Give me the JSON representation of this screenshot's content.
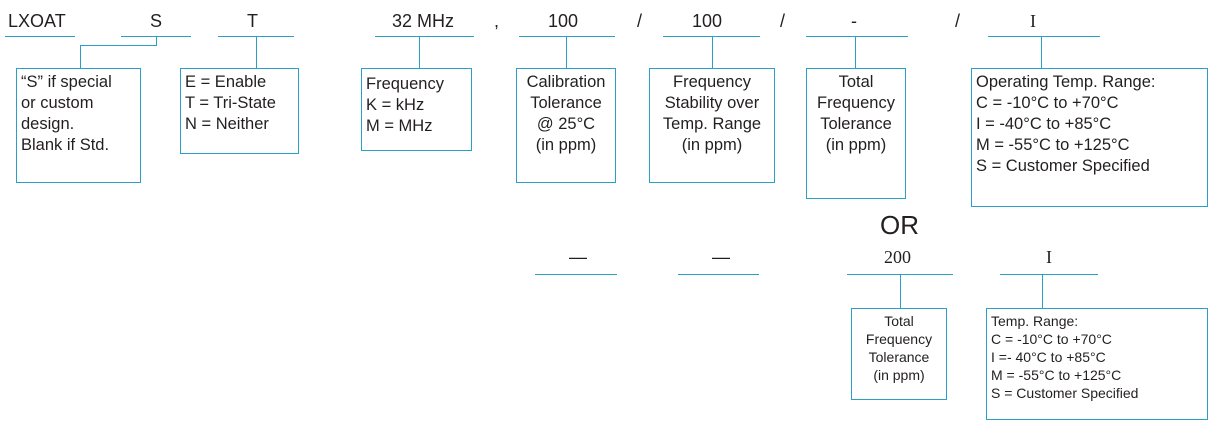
{
  "top_row": {
    "prefix": "LXOAT",
    "special": "S",
    "enable": "T",
    "frequency": "32 MHz",
    "comma": ",",
    "calibration": "100",
    "sep1": "/",
    "stability": "100",
    "sep2": "/",
    "total": "-",
    "sep3": "/",
    "temp": "I"
  },
  "boxes": {
    "special": [
      "“S” if special",
      "or custom",
      "design.",
      "Blank if Std."
    ],
    "enable": [
      "E = Enable",
      "T = Tri-State",
      "N = Neither"
    ],
    "frequency": [
      "Frequency",
      "K = kHz",
      "M = MHz"
    ],
    "calibration": [
      "Calibration",
      "Tolerance",
      "@ 25°C",
      "(in ppm)"
    ],
    "stability": [
      "Frequency",
      "Stability over",
      "Temp. Range",
      "(in ppm)"
    ],
    "total": [
      "Total",
      "Frequency",
      "Tolerance",
      "(in ppm)"
    ],
    "temp_range": [
      "Operating Temp. Range:",
      "C  =  -10°C to +70°C",
      "I  =  -40°C to +85°C",
      "M  =  -55°C to +125°C",
      "S  =  Customer Specified"
    ]
  },
  "or_label": "OR",
  "bottom_row": {
    "dash1": "—",
    "dash2": "—",
    "total": "200",
    "temp": "I"
  },
  "bottom_boxes": {
    "total": [
      "Total",
      "Frequency",
      "Tolerance",
      "(in ppm)"
    ],
    "temp_range": [
      "Temp. Range:",
      "C   =  -10°C to +70°C",
      "I    =-  40°C to +85°C",
      "M   =  -55°C to +125°C",
      "S   =  Customer Specified"
    ]
  },
  "colors": {
    "line": "#2aa0c8",
    "text": "#231f20"
  }
}
